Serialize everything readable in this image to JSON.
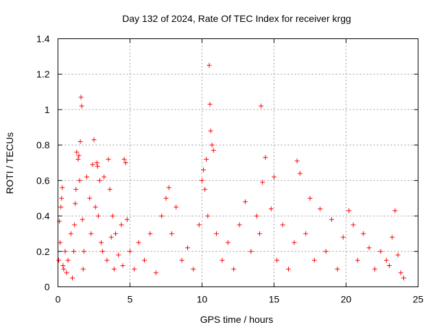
{
  "chart_data": {
    "type": "scatter",
    "title": "Day 132 of 2024, Rate Of TEC Index for receiver krgg",
    "xlabel": "GPS time / hours",
    "ylabel": "ROTI / TECUs",
    "xlim": [
      0,
      25
    ],
    "ylim": [
      0,
      1.4
    ],
    "x_ticks": [
      0,
      5,
      10,
      15,
      20,
      25
    ],
    "x_tick_labels": [
      "0",
      "5",
      "10",
      "15",
      "20",
      "25"
    ],
    "y_ticks": [
      0,
      0.2,
      0.4,
      0.6,
      0.8,
      1.0,
      1.2,
      1.4
    ],
    "y_tick_labels": [
      "0",
      "0.2",
      "0.4",
      "0.6",
      "0.8",
      "1",
      "1.2",
      "1.4"
    ],
    "grid": true,
    "marker": "+",
    "color": "#ff0000",
    "series": [
      {
        "name": "ROTI",
        "x": [
          0.05,
          0.1,
          0.15,
          0.2,
          0.25,
          0.3,
          0.35,
          0.4,
          0.5,
          0.6,
          0.7,
          0.9,
          1.0,
          1.1,
          1.15,
          1.2,
          1.25,
          1.3,
          1.4,
          1.45,
          1.5,
          1.55,
          1.6,
          1.65,
          1.7,
          1.75,
          1.8,
          2.0,
          2.2,
          2.3,
          2.4,
          2.5,
          2.6,
          2.7,
          2.75,
          2.8,
          2.9,
          3.0,
          3.1,
          3.2,
          3.4,
          3.5,
          3.6,
          3.7,
          3.8,
          3.9,
          4.0,
          4.2,
          4.4,
          4.5,
          4.6,
          4.7,
          4.8,
          5.0,
          5.3,
          5.6,
          6.0,
          6.4,
          6.8,
          7.2,
          7.5,
          7.7,
          7.9,
          8.2,
          8.6,
          9.0,
          9.4,
          9.8,
          10.0,
          10.1,
          10.2,
          10.3,
          10.4,
          10.5,
          10.55,
          10.6,
          10.7,
          10.8,
          11.0,
          11.4,
          11.8,
          12.2,
          12.6,
          13.0,
          13.4,
          13.8,
          14.0,
          14.1,
          14.2,
          14.4,
          14.8,
          15.0,
          15.2,
          15.6,
          16.0,
          16.4,
          16.6,
          16.8,
          17.2,
          17.5,
          17.8,
          18.2,
          18.6,
          19.0,
          19.4,
          19.8,
          20.2,
          20.5,
          20.8,
          21.2,
          21.6,
          22.0,
          22.4,
          22.8,
          23.0,
          23.2,
          23.4,
          23.6,
          23.8,
          24.0
        ],
        "y": [
          0.15,
          0.37,
          0.25,
          0.45,
          0.5,
          0.56,
          0.12,
          0.1,
          0.2,
          0.08,
          0.15,
          0.3,
          0.05,
          0.2,
          0.35,
          0.47,
          0.55,
          0.76,
          0.72,
          0.74,
          0.6,
          0.82,
          1.07,
          1.02,
          0.38,
          0.1,
          0.2,
          0.62,
          0.5,
          0.3,
          0.69,
          0.83,
          0.45,
          0.7,
          0.68,
          0.4,
          0.6,
          0.25,
          0.2,
          0.62,
          0.15,
          0.72,
          0.55,
          0.28,
          0.4,
          0.1,
          0.3,
          0.18,
          0.35,
          0.12,
          0.72,
          0.7,
          0.38,
          0.2,
          0.1,
          0.25,
          0.15,
          0.3,
          0.08,
          0.4,
          0.5,
          0.56,
          0.3,
          0.45,
          0.15,
          0.22,
          0.1,
          0.35,
          0.6,
          0.66,
          0.55,
          0.72,
          0.4,
          1.25,
          1.03,
          0.88,
          0.8,
          0.77,
          0.3,
          0.15,
          0.25,
          0.1,
          0.35,
          0.48,
          0.2,
          0.4,
          0.3,
          1.02,
          0.59,
          0.73,
          0.44,
          0.62,
          0.15,
          0.35,
          0.1,
          0.25,
          0.71,
          0.64,
          0.3,
          0.5,
          0.15,
          0.44,
          0.2,
          0.38,
          0.1,
          0.28,
          0.43,
          0.35,
          0.15,
          0.3,
          0.22,
          0.1,
          0.2,
          0.15,
          0.12,
          0.28,
          0.43,
          0.18,
          0.08,
          0.05
        ]
      }
    ]
  }
}
